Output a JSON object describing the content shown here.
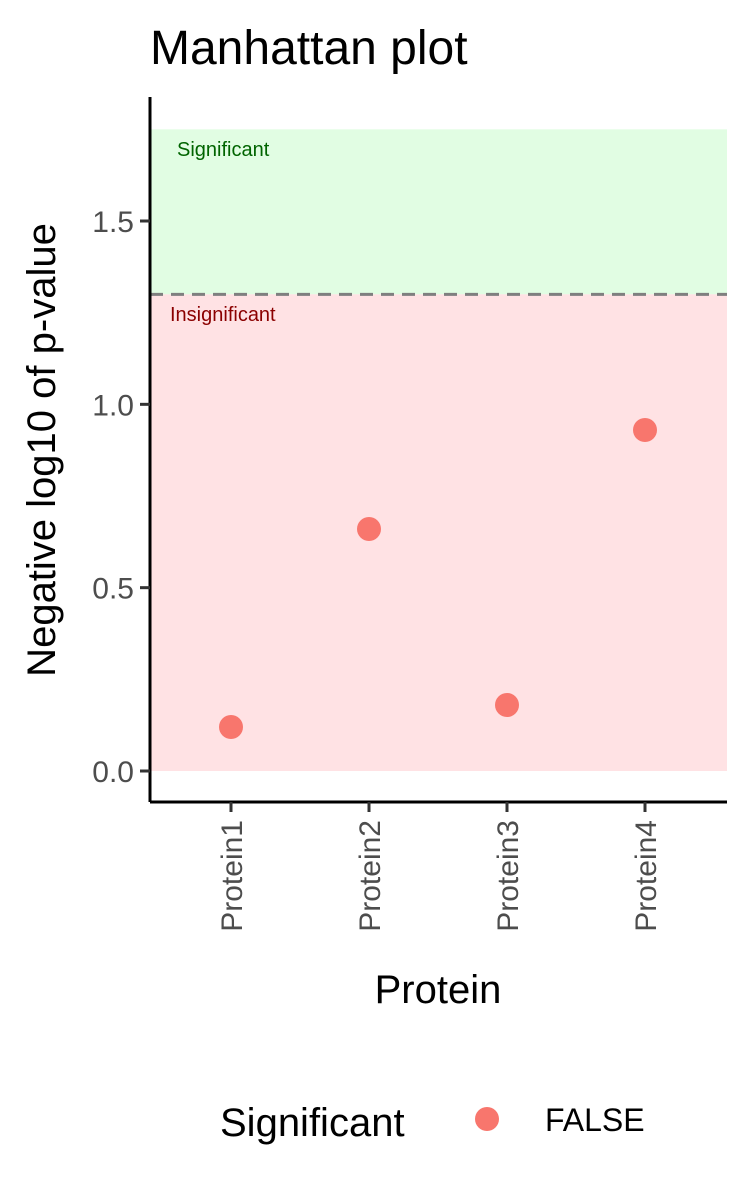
{
  "chart_data": {
    "type": "scatter",
    "title": "Manhattan plot",
    "xlabel": "Protein",
    "ylabel": "Negative log10 of p-value",
    "categories": [
      "Protein1",
      "Protein2",
      "Protein3",
      "Protein4"
    ],
    "series": [
      {
        "name": "FALSE",
        "color": "#F8766D",
        "values": [
          0.12,
          0.66,
          0.18,
          0.93
        ]
      }
    ],
    "ylim": [
      -0.08,
      1.8
    ],
    "yticks": [
      0.0,
      0.5,
      1.0,
      1.5
    ],
    "ytick_labels": [
      "0.0",
      "0.5",
      "1.0",
      "1.5"
    ],
    "threshold": 1.3,
    "regions": [
      {
        "label": "Significant",
        "from": 1.3,
        "to": 1.75,
        "fill": "#E1FDE3",
        "text_color": "#006400"
      },
      {
        "label": "Insignificant",
        "from": 0.0,
        "to": 1.3,
        "fill": "#FFE2E4",
        "text_color": "#8B0000"
      }
    ],
    "legend": {
      "title": "Significant",
      "position": "bottom",
      "items": [
        {
          "label": "FALSE",
          "color": "#F8766D"
        }
      ]
    },
    "grid": false
  }
}
